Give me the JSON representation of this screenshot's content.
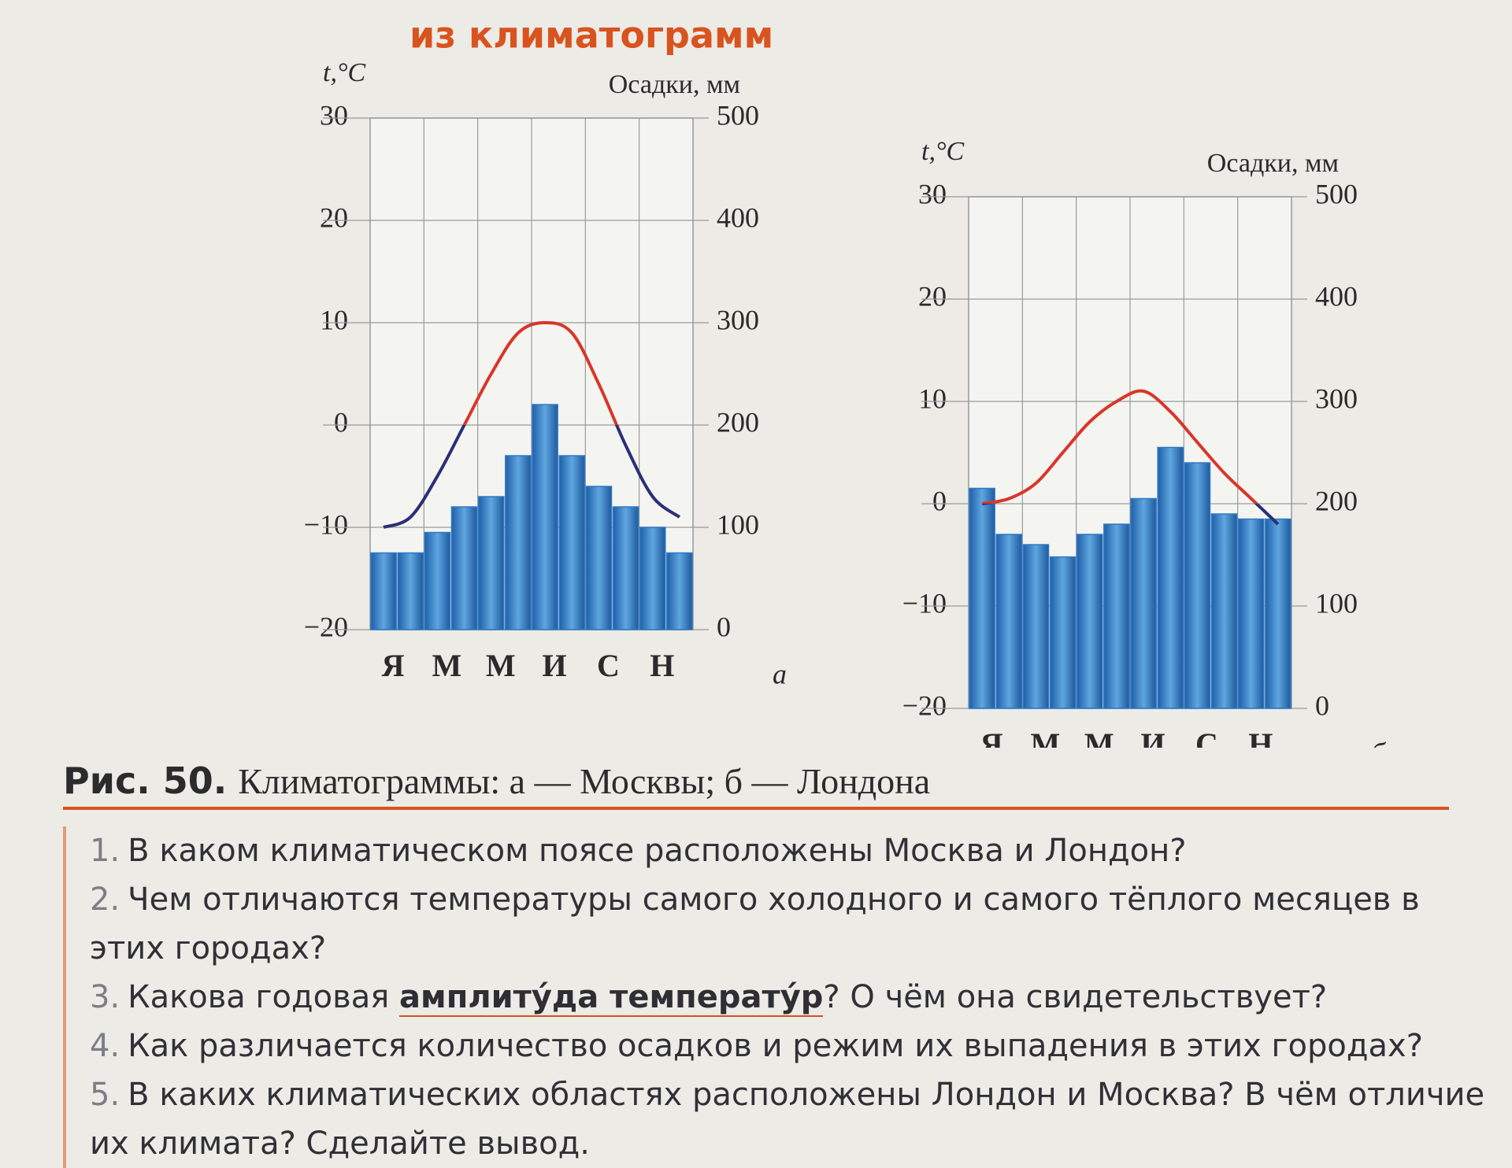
{
  "section_title": "из климатограмм",
  "chart_data": [
    {
      "type": "climatogram",
      "label": "а",
      "ylabel": "t,°C",
      "y2label": "Осадки, мм",
      "grid": true,
      "categories": [
        "Я",
        null,
        "М",
        null,
        "М",
        null,
        "И",
        null,
        "С",
        null,
        "Н",
        null
      ],
      "ylim": [
        -20,
        30
      ],
      "yticks": [
        {
          "value": -20,
          "label": "−20"
        },
        {
          "value": -10,
          "label": "−10"
        },
        0,
        10,
        20,
        30
      ],
      "y2lim": [
        0,
        500
      ],
      "y2ticks": [
        0,
        100,
        200,
        300,
        400,
        500
      ],
      "below_zero_color": "#2b2f78",
      "series": [
        {
          "type": "line",
          "color": "#d8362a",
          "values": [
            -10,
            -9,
            -5,
            0,
            5,
            9,
            10,
            9,
            4,
            -2,
            -7,
            -9
          ]
        },
        {
          "type": "bar",
          "axis": "y2",
          "color": "#2f78c4",
          "values": [
            75,
            75,
            95,
            120,
            130,
            170,
            220,
            170,
            140,
            120,
            100,
            75
          ]
        }
      ]
    },
    {
      "type": "climatogram",
      "label": "б",
      "ylabel": "t,°C",
      "y2label": "Осадки, мм",
      "grid": true,
      "categories": [
        "Я",
        null,
        "М",
        null,
        "М",
        null,
        "И",
        null,
        "С",
        null,
        "Н",
        null
      ],
      "ylim": [
        -20,
        30
      ],
      "yticks": [
        {
          "value": -20,
          "label": "−20"
        },
        {
          "value": -10,
          "label": "−10"
        },
        0,
        10,
        20,
        30
      ],
      "y2lim": [
        0,
        500
      ],
      "y2ticks": [
        0,
        100,
        200,
        300,
        400,
        500
      ],
      "below_zero_color": "#2b2f78",
      "series": [
        {
          "type": "line",
          "color": "#d8362a",
          "values": [
            0,
            0.5,
            2,
            5,
            8,
            10,
            11,
            9,
            6,
            3,
            0.5,
            -2
          ]
        },
        {
          "type": "bar",
          "axis": "y2",
          "color": "#2f78c4",
          "values": [
            215,
            170,
            160,
            148,
            170,
            180,
            205,
            255,
            240,
            190,
            185,
            185
          ]
        }
      ]
    }
  ],
  "caption": {
    "label": "Рис. 50.",
    "text": "Климатограммы: а — Москвы; б — Лондона"
  },
  "questions": [
    {
      "number": "1.",
      "text": "В каком климатическом поясе расположены Москва и Лондон?"
    },
    {
      "number": "2.",
      "text": "Чем отличаются температуры самого холодного и самого тёплого месяцев в этих городах?"
    },
    {
      "number": "3.",
      "text": "Какова годовая",
      "term": "амплиту́да температу́р",
      "text_after": "? О чём она свидетельствует?"
    },
    {
      "number": "4.",
      "text": "Как различается количество осадков и режим их выпадения в этих городах?"
    },
    {
      "number": "5.",
      "text": "В каких климатических областях расположены Лондон и Москва? В чём отличие их климата? Сделайте вывод."
    }
  ]
}
